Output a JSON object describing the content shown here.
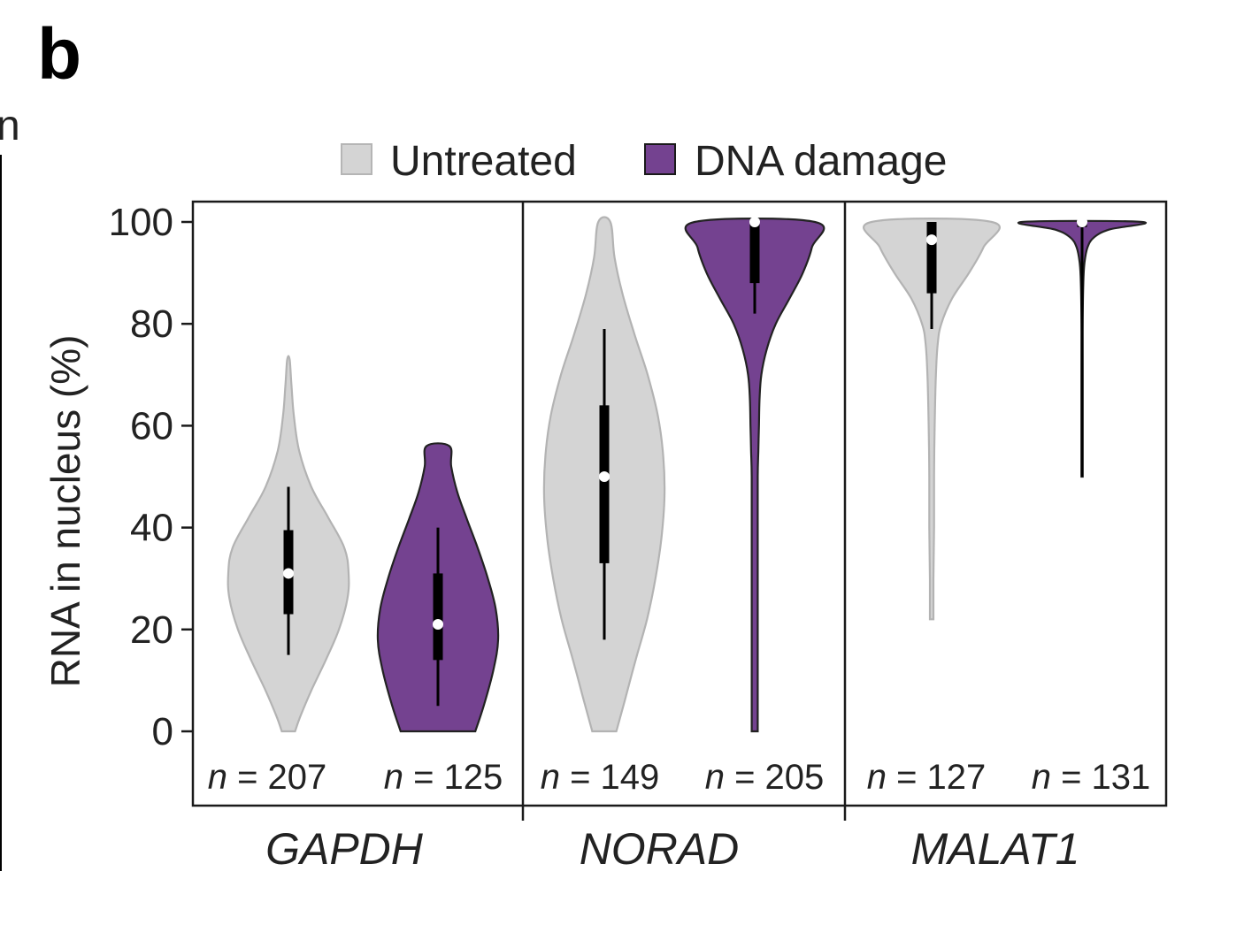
{
  "panel_label": "b",
  "edge_fragment": "n",
  "chart_data": {
    "type": "violin",
    "ylabel": "RNA in nucleus (%)",
    "ylim": [
      0,
      100
    ],
    "yticks": [
      "0",
      "20",
      "40",
      "60",
      "80",
      "100"
    ],
    "legend": {
      "position": "top",
      "entries": [
        {
          "name": "Untreated",
          "color": "#d4d4d4"
        },
        {
          "name": "DNA damage",
          "color": "#744290"
        }
      ]
    },
    "colors": {
      "Untreated": "#d4d4d4",
      "Untreated_stroke": "#b3b3b3",
      "DNA damage": "#744290",
      "DNA damage_stroke": "#222222"
    },
    "n_prefix": "n =",
    "groups": [
      {
        "name": "GAPDH",
        "series": [
          {
            "name": "Untreated",
            "n": "207",
            "median": 31,
            "q1": 23,
            "q3": 39.5,
            "whisker_low": 15,
            "whisker_high": 48,
            "profile": [
              [
                0,
                0.11
              ],
              [
                3,
                0.2
              ],
              [
                8,
                0.38
              ],
              [
                14,
                0.62
              ],
              [
                20,
                0.84
              ],
              [
                26,
                0.98
              ],
              [
                31,
                1.0
              ],
              [
                36,
                0.93
              ],
              [
                42,
                0.66
              ],
              [
                48,
                0.38
              ],
              [
                55,
                0.18
              ],
              [
                62,
                0.09
              ],
              [
                68,
                0.05
              ],
              [
                73,
                0.02
              ]
            ]
          },
          {
            "name": "DNA damage",
            "n": "125",
            "median": 21,
            "q1": 14,
            "q3": 31,
            "whisker_low": 5,
            "whisker_high": 40,
            "profile": [
              [
                0,
                0.62
              ],
              [
                5,
                0.76
              ],
              [
                12,
                0.92
              ],
              [
                18,
                1.0
              ],
              [
                24,
                0.96
              ],
              [
                30,
                0.83
              ],
              [
                36,
                0.66
              ],
              [
                42,
                0.47
              ],
              [
                47,
                0.32
              ],
              [
                52,
                0.22
              ],
              [
                56,
                0.19
              ]
            ]
          }
        ]
      },
      {
        "name": "NORAD",
        "series": [
          {
            "name": "Untreated",
            "n": "149",
            "median": 50,
            "q1": 33,
            "q3": 64,
            "whisker_low": 18,
            "whisker_high": 79,
            "profile": [
              [
                0,
                0.2
              ],
              [
                6,
                0.34
              ],
              [
                14,
                0.52
              ],
              [
                22,
                0.71
              ],
              [
                30,
                0.85
              ],
              [
                38,
                0.95
              ],
              [
                46,
                1.0
              ],
              [
                54,
                0.98
              ],
              [
                62,
                0.89
              ],
              [
                70,
                0.72
              ],
              [
                78,
                0.5
              ],
              [
                86,
                0.3
              ],
              [
                93,
                0.17
              ],
              [
                100,
                0.1
              ]
            ]
          },
          {
            "name": "DNA damage",
            "n": "205",
            "median": 100,
            "q1": 88,
            "q3": 100,
            "whisker_low": 82,
            "whisker_high": 100,
            "profile": [
              [
                0,
                0.05
              ],
              [
                10,
                0.05
              ],
              [
                20,
                0.05
              ],
              [
                30,
                0.05
              ],
              [
                40,
                0.05
              ],
              [
                50,
                0.05
              ],
              [
                55,
                0.06
              ],
              [
                60,
                0.07
              ],
              [
                65,
                0.08
              ],
              [
                70,
                0.11
              ],
              [
                75,
                0.2
              ],
              [
                80,
                0.35
              ],
              [
                85,
                0.58
              ],
              [
                90,
                0.8
              ],
              [
                95,
                0.95
              ],
              [
                100,
                1.0
              ]
            ]
          }
        ]
      },
      {
        "name": "MALAT1",
        "series": [
          {
            "name": "Untreated",
            "n": "127",
            "median": 96.5,
            "q1": 86,
            "q3": 100,
            "whisker_low": 79,
            "whisker_high": 100,
            "profile": [
              [
                22,
                0.03
              ],
              [
                30,
                0.03
              ],
              [
                40,
                0.04
              ],
              [
                50,
                0.04
              ],
              [
                60,
                0.05
              ],
              [
                70,
                0.07
              ],
              [
                76,
                0.1
              ],
              [
                80,
                0.16
              ],
              [
                85,
                0.34
              ],
              [
                90,
                0.62
              ],
              [
                95,
                0.86
              ],
              [
                100,
                1.0
              ]
            ]
          },
          {
            "name": "DNA damage",
            "n": "131",
            "median": 100,
            "q1": 99,
            "q3": 100,
            "whisker_low": 50,
            "whisker_high": 100,
            "profile": [
              [
                50,
                0.01
              ],
              [
                60,
                0.01
              ],
              [
                70,
                0.01
              ],
              [
                80,
                0.01
              ],
              [
                88,
                0.02
              ],
              [
                92,
                0.04
              ],
              [
                95,
                0.09
              ],
              [
                97,
                0.2
              ],
              [
                98.5,
                0.45
              ],
              [
                100,
                1.0
              ]
            ]
          }
        ]
      }
    ]
  }
}
